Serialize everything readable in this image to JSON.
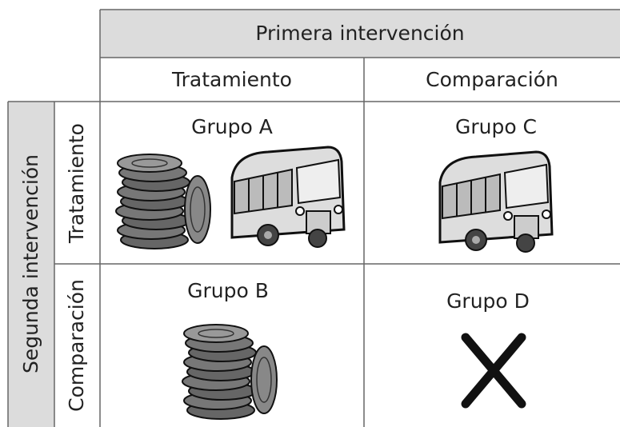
{
  "header": {
    "title": "Primera intervención",
    "columns": [
      "Tratamiento",
      "Comparación"
    ]
  },
  "side": {
    "title": "Segunda intervención",
    "rows": [
      "Tratamiento",
      "Comparación"
    ]
  },
  "cells": [
    [
      "Grupo A",
      "Grupo C"
    ],
    [
      "Grupo B",
      "Grupo D"
    ]
  ]
}
